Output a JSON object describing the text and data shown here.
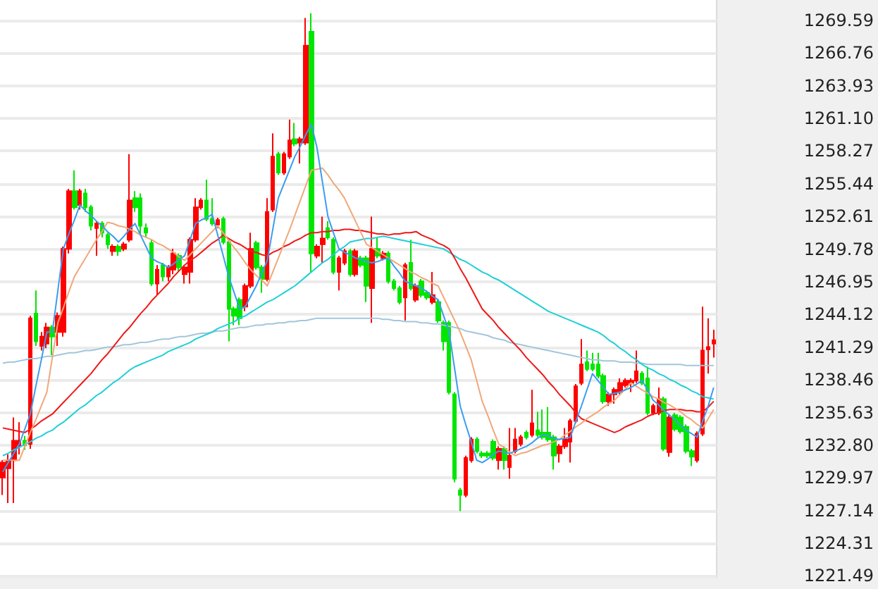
{
  "chart_data": {
    "type": "candlestick",
    "tick_labels": "y",
    "grid": "y",
    "ylim": [
      1221.33,
      1271.35
    ],
    "yticks": [
      1221.49,
      1224.31,
      1227.14,
      1229.97,
      {
        "value": 1232.8,
        "label": "1232.80"
      },
      1235.63,
      1238.46,
      1241.29,
      1244.12,
      1246.95,
      1249.78,
      1252.61,
      1255.44,
      1258.27,
      {
        "value": 1261.1,
        "label": "1261.10"
      },
      1263.93,
      1266.76,
      1269.59
    ],
    "categories": [
      null,
      null,
      null,
      null,
      null,
      null,
      null,
      null,
      null,
      null,
      null,
      null,
      null,
      null,
      null,
      null,
      null,
      null,
      null,
      null,
      null,
      null,
      null,
      null,
      null,
      null,
      null,
      null,
      null,
      null,
      null,
      null,
      null,
      null,
      null,
      null,
      null,
      null,
      null,
      null,
      null,
      null,
      null,
      null,
      null,
      null,
      null,
      null,
      null,
      null,
      null,
      null,
      null,
      null,
      null,
      null,
      null,
      null,
      null,
      null,
      null,
      null,
      null,
      null,
      null,
      null,
      null,
      null,
      null,
      null,
      null,
      null,
      null,
      null,
      null,
      null,
      null,
      null,
      null,
      null,
      null,
      null,
      null,
      null,
      null,
      null,
      null,
      null,
      null,
      null,
      null,
      null,
      null,
      null,
      null,
      null,
      null,
      null,
      null,
      null,
      null,
      null,
      null,
      null,
      null,
      null,
      null,
      null,
      null,
      null,
      null,
      null,
      null,
      null,
      null,
      null,
      null,
      null,
      null,
      null,
      null,
      null,
      null,
      null,
      null,
      null,
      null,
      null,
      null,
      null
    ],
    "ohlc": [
      [
        1230.0,
        1231.5,
        1228.5,
        1231.3
      ],
      [
        1230.8,
        1232.0,
        1227.8,
        1231.4
      ],
      [
        1231.5,
        1235.2,
        1227.8,
        1233.2
      ],
      [
        1232.8,
        1234.8,
        1232.0,
        1233.2
      ],
      [
        1233.2,
        1233.6,
        1232.4,
        1232.8
      ],
      [
        1232.9,
        1244.0,
        1232.5,
        1243.8
      ],
      [
        1244.2,
        1246.2,
        1241.4,
        1241.8
      ],
      [
        1241.4,
        1242.6,
        1241.0,
        1242.2
      ],
      [
        1241.6,
        1243.4,
        1241.2,
        1243.0
      ],
      [
        1243.0,
        1243.2,
        1240.6,
        1242.2
      ],
      [
        1242.6,
        1244.3,
        1241.4,
        1244.0
      ],
      [
        1242.6,
        1250.0,
        1242.2,
        1249.8
      ],
      [
        1249.8,
        1255.0,
        1249.4,
        1254.8
      ],
      [
        1254.8,
        1256.6,
        1253.2,
        1253.4
      ],
      [
        1253.6,
        1255.0,
        1253.2,
        1254.8
      ],
      [
        1254.6,
        1255.0,
        1253.0,
        1253.4
      ],
      [
        1253.4,
        1253.6,
        1251.4,
        1251.8
      ],
      [
        1251.6,
        1252.2,
        1249.2,
        1252.0
      ],
      [
        1252.0,
        1252.2,
        1250.8,
        1251.2
      ],
      [
        1251.0,
        1251.2,
        1249.8,
        1250.2
      ],
      [
        1249.6,
        1250.2,
        1249.2,
        1250.0
      ],
      [
        1250.0,
        1250.2,
        1249.2,
        1249.6
      ],
      [
        1249.8,
        1250.4,
        1249.6,
        1250.2
      ],
      [
        1250.6,
        1258.0,
        1250.4,
        1254.0
      ],
      [
        1254.2,
        1254.8,
        1253.0,
        1253.4
      ],
      [
        1254.2,
        1254.6,
        1251.0,
        1251.8
      ],
      [
        1251.6,
        1252.0,
        1250.8,
        1251.2
      ],
      [
        1250.3,
        1250.6,
        1246.6,
        1246.8
      ],
      [
        1246.8,
        1248.4,
        1245.8,
        1248.0
      ],
      [
        1248.4,
        1248.6,
        1247.0,
        1247.4
      ],
      [
        1247.4,
        1248.4,
        1247.0,
        1248.2
      ],
      [
        1248.0,
        1249.8,
        1247.6,
        1249.4
      ],
      [
        1249.2,
        1249.4,
        1247.8,
        1248.2
      ],
      [
        1247.6,
        1248.4,
        1246.8,
        1248.2
      ],
      [
        1247.8,
        1250.8,
        1246.8,
        1250.6
      ],
      [
        1250.6,
        1254.2,
        1250.4,
        1253.4
      ],
      [
        1253.4,
        1254.2,
        1253.2,
        1254.0
      ],
      [
        1254.0,
        1255.8,
        1252.2,
        1252.4
      ],
      [
        1252.4,
        1254.2,
        1251.8,
        1252.0
      ],
      [
        1251.9,
        1252.5,
        1251.6,
        1252.3
      ],
      [
        1252.4,
        1252.6,
        1250.2,
        1250.4
      ],
      [
        1250.4,
        1250.6,
        1241.8,
        1244.6
      ],
      [
        1244.6,
        1244.8,
        1243.2,
        1244.0
      ],
      [
        1245.4,
        1245.6,
        1243.2,
        1243.8
      ],
      [
        1244.8,
        1246.8,
        1244.4,
        1246.6
      ],
      [
        1246.6,
        1251.2,
        1246.4,
        1249.8
      ],
      [
        1250.3,
        1250.5,
        1248.0,
        1248.2
      ],
      [
        1248.2,
        1248.4,
        1246.0,
        1247.2
      ],
      [
        1247.2,
        1254.2,
        1247.0,
        1253.0
      ],
      [
        1253.2,
        1259.8,
        1253.0,
        1257.8
      ],
      [
        1258.0,
        1258.2,
        1256.2,
        1256.4
      ],
      [
        1256.4,
        1258.2,
        1256.2,
        1258.0
      ],
      [
        1257.8,
        1261.0,
        1257.6,
        1259.2
      ],
      [
        1259.3,
        1260.7,
        1258.7,
        1258.9
      ],
      [
        1259.0,
        1259.5,
        1257.2,
        1259.3
      ],
      [
        1259.0,
        1269.8,
        1258.8,
        1267.4
      ],
      [
        1268.6,
        1270.2,
        1247.8,
        1249.4
      ],
      [
        1249.2,
        1250.2,
        1249.0,
        1250.0
      ],
      [
        1250.2,
        1252.6,
        1248.6,
        1250.7
      ],
      [
        1251.6,
        1252.2,
        1250.6,
        1250.8
      ],
      [
        1250.6,
        1250.8,
        1247.6,
        1247.8
      ],
      [
        1247.8,
        1249.2,
        1246.2,
        1249.0
      ],
      [
        1248.6,
        1249.8,
        1248.4,
        1249.6
      ],
      [
        1249.6,
        1249.8,
        1247.4,
        1247.6
      ],
      [
        1247.6,
        1249.8,
        1247.4,
        1249.6
      ],
      [
        1249.0,
        1249.2,
        1248.2,
        1248.4
      ],
      [
        1249.0,
        1249.2,
        1245.2,
        1246.6
      ],
      [
        1246.4,
        1252.6,
        1243.4,
        1249.8
      ],
      [
        1249.8,
        1250.8,
        1249.0,
        1249.2
      ],
      [
        1249.0,
        1249.6,
        1248.8,
        1249.4
      ],
      [
        1249.4,
        1249.6,
        1246.8,
        1247.0
      ],
      [
        1247.0,
        1247.2,
        1246.2,
        1246.4
      ],
      [
        1246.4,
        1246.6,
        1245.0,
        1245.2
      ],
      [
        1245.6,
        1248.6,
        1243.6,
        1248.4
      ],
      [
        1248.6,
        1250.6,
        1246.2,
        1246.4
      ],
      [
        1245.4,
        1246.8,
        1245.2,
        1246.6
      ],
      [
        1247.0,
        1247.2,
        1245.6,
        1245.8
      ],
      [
        1246.0,
        1246.2,
        1245.4,
        1245.6
      ],
      [
        1245.2,
        1247.8,
        1245.0,
        1245.8
      ],
      [
        1245.2,
        1245.4,
        1243.4,
        1243.6
      ],
      [
        1243.4,
        1243.6,
        1241.0,
        1241.8
      ],
      [
        1243.4,
        1243.6,
        1237.2,
        1237.4
      ],
      [
        1237.2,
        1237.4,
        1229.6,
        1229.9
      ],
      [
        1228.9,
        1229.1,
        1227.1,
        1228.5
      ],
      [
        1228.5,
        1231.9,
        1228.3,
        1231.7
      ],
      [
        1231.5,
        1233.5,
        1231.3,
        1233.3
      ],
      [
        1233.3,
        1233.5,
        1232.1,
        1232.3
      ],
      [
        1232.1,
        1232.3,
        1231.7,
        1231.9
      ],
      [
        1232.1,
        1232.3,
        1231.7,
        1231.9
      ],
      [
        1233.1,
        1233.3,
        1231.5,
        1231.7
      ],
      [
        1231.5,
        1232.7,
        1230.7,
        1232.5
      ],
      [
        1232.5,
        1232.7,
        1230.7,
        1231.5
      ],
      [
        1230.9,
        1234.3,
        1229.9,
        1231.9
      ],
      [
        1232.3,
        1234.3,
        1232.1,
        1233.3
      ],
      [
        1232.9,
        1233.7,
        1232.7,
        1233.5
      ],
      [
        1233.9,
        1234.1,
        1233.3,
        1233.5
      ],
      [
        1233.7,
        1237.6,
        1233.5,
        1234.7
      ],
      [
        1234.1,
        1235.7,
        1233.5,
        1233.7
      ],
      [
        1233.9,
        1235.9,
        1233.3,
        1233.5
      ],
      [
        1233.9,
        1236.1,
        1233.1,
        1233.3
      ],
      [
        1233.5,
        1233.7,
        1230.7,
        1231.9
      ],
      [
        1232.1,
        1232.9,
        1231.3,
        1232.7
      ],
      [
        1232.7,
        1234.3,
        1232.5,
        1233.3
      ],
      [
        1233.1,
        1235.1,
        1231.3,
        1234.9
      ],
      [
        1234.9,
        1238.1,
        1234.7,
        1237.9
      ],
      [
        1238.2,
        1242.0,
        1238.0,
        1239.8
      ],
      [
        1240.0,
        1241.0,
        1239.2,
        1239.4
      ],
      [
        1239.8,
        1240.8,
        1239.2,
        1239.4
      ],
      [
        1239.8,
        1240.8,
        1238.6,
        1238.8
      ],
      [
        1238.8,
        1239.0,
        1236.4,
        1236.6
      ],
      [
        1236.6,
        1237.4,
        1236.2,
        1237.2
      ],
      [
        1237.2,
        1237.8,
        1236.4,
        1237.6
      ],
      [
        1237.4,
        1238.6,
        1237.2,
        1238.2
      ],
      [
        1238.0,
        1238.6,
        1237.8,
        1238.4
      ],
      [
        1238.2,
        1238.6,
        1237.4,
        1238.4
      ],
      [
        1238.4,
        1241.0,
        1238.2,
        1239.2
      ],
      [
        1239.0,
        1239.2,
        1238.0,
        1238.2
      ],
      [
        1238.6,
        1239.6,
        1235.4,
        1235.6
      ],
      [
        1235.6,
        1236.4,
        1235.4,
        1236.2
      ],
      [
        1235.6,
        1237.8,
        1235.4,
        1236.8
      ],
      [
        1236.8,
        1237.0,
        1232.3,
        1232.5
      ],
      [
        1232.2,
        1235.4,
        1231.8,
        1235.2
      ],
      [
        1235.4,
        1235.6,
        1234.0,
        1234.2
      ],
      [
        1235.2,
        1235.4,
        1233.8,
        1234.0
      ],
      [
        1234.4,
        1234.6,
        1232.1,
        1232.3
      ],
      [
        1232.3,
        1232.5,
        1231.0,
        1231.8
      ],
      [
        1231.5,
        1234.0,
        1231.3,
        1233.8
      ],
      [
        1233.8,
        1244.8,
        1233.6,
        1241.0
      ],
      [
        1241.1,
        1243.8,
        1239.0,
        1241.3
      ],
      [
        1241.6,
        1242.8,
        1240.4,
        1241.9
      ]
    ],
    "colors": [
      "#ff0000",
      "#ff0000",
      "#ff0000",
      "#ff0000",
      "#00e600",
      "#ff0000",
      "#00e600",
      "#ff0000",
      "#ff0000",
      "#00e600",
      "#ff0000",
      "#ff0000",
      "#ff0000",
      "#00e600",
      "#ff0000",
      "#00e600",
      "#00e600",
      "#ff0000",
      "#00e600",
      "#00e600",
      "#ff0000",
      "#00e600",
      "#ff0000",
      "#ff0000",
      "#00e600",
      "#00e600",
      "#00e600",
      "#00e600",
      "#ff0000",
      "#00e600",
      "#ff0000",
      "#ff0000",
      "#00e600",
      "#ff0000",
      "#ff0000",
      "#ff0000",
      "#ff0000",
      "#00e600",
      "#00e600",
      "#ff0000",
      "#00e600",
      "#00e600",
      "#00e600",
      "#00e600",
      "#ff0000",
      "#ff0000",
      "#00e600",
      "#00e600",
      "#ff0000",
      "#ff0000",
      "#00e600",
      "#ff0000",
      "#ff0000",
      "#00e600",
      "#ff0000",
      "#ff0000",
      "#00e600",
      "#ff0000",
      "#ff0000",
      "#00e600",
      "#00e600",
      "#ff0000",
      "#ff0000",
      "#00e600",
      "#ff0000",
      "#00e600",
      "#00e600",
      "#ff0000",
      "#00e600",
      "#ff0000",
      "#00e600",
      "#00e600",
      "#00e600",
      "#ff0000",
      "#00e600",
      "#ff0000",
      "#00e600",
      "#00e600",
      "#ff0000",
      "#00e600",
      "#00e600",
      "#00e600",
      "#00e600",
      "#00e600",
      "#ff0000",
      "#ff0000",
      "#00e600",
      "#00e600",
      "#00e600",
      "#00e600",
      "#ff0000",
      "#00e600",
      "#ff0000",
      "#ff0000",
      "#ff0000",
      "#00e600",
      "#ff0000",
      "#00e600",
      "#00e600",
      "#00e600",
      "#00e600",
      "#ff0000",
      "#ff0000",
      "#ff0000",
      "#ff0000",
      "#ff0000",
      "#00e600",
      "#00e600",
      "#00e600",
      "#00e600",
      "#ff0000",
      "#ff0000",
      "#ff0000",
      "#ff0000",
      "#ff0000",
      "#ff0000",
      "#00e600",
      "#00e600",
      "#ff0000",
      "#ff0000",
      "#00e600",
      "#ff0000",
      "#00e600",
      "#00e600",
      "#00e600",
      "#00e600",
      "#ff0000",
      "#ff0000",
      "#ff0000",
      "#ff0000"
    ],
    "series": [
      {
        "type": "line",
        "color": "#a3c6dc",
        "values": [
          1239.9,
          1240.0,
          1240.0,
          1240.1,
          1240.2,
          1240.3,
          1240.3,
          1240.4,
          1240.5,
          1240.5,
          1240.6,
          1240.7,
          1240.8,
          1240.8,
          1240.9,
          1241.0,
          1241.0,
          1241.1,
          1241.2,
          1241.3,
          1241.3,
          1241.4,
          1241.5,
          1241.5,
          1241.6,
          1241.7,
          1241.7,
          1241.8,
          1241.9,
          1242.0,
          1242.0,
          1242.1,
          1242.2,
          1242.2,
          1242.3,
          1242.4,
          1242.5,
          1242.5,
          1242.6,
          1242.7,
          1242.7,
          1242.8,
          1242.9,
          1243.0,
          1243.0,
          1243.1,
          1243.2,
          1243.2,
          1243.3,
          1243.3,
          1243.4,
          1243.4,
          1243.5,
          1243.5,
          1243.6,
          1243.6,
          1243.7,
          1243.8,
          1243.8,
          1243.8,
          1243.8,
          1243.8,
          1243.8,
          1243.8,
          1243.8,
          1243.8,
          1243.8,
          1243.8,
          1243.8,
          1243.7,
          1243.7,
          1243.6,
          1243.6,
          1243.5,
          1243.5,
          1243.5,
          1243.4,
          1243.4,
          1243.3,
          1243.3,
          1243.2,
          1243.1,
          1243.0,
          1242.9,
          1242.7,
          1242.6,
          1242.5,
          1242.4,
          1242.3,
          1242.1,
          1242.0,
          1241.9,
          1241.7,
          1241.6,
          1241.5,
          1241.4,
          1241.3,
          1241.2,
          1241.1,
          1241.0,
          1240.9,
          1240.8,
          1240.7,
          1240.6,
          1240.5,
          1240.4,
          1240.3,
          1240.2,
          1240.2,
          1240.1,
          1240.1,
          1240.1,
          1240.0,
          1240.0,
          1240.0,
          1239.9,
          1239.9,
          1239.8,
          1239.8,
          1239.8,
          1239.8,
          1239.8,
          1239.8,
          1239.8,
          1239.7,
          1239.7,
          1239.7,
          1239.7,
          1239.7,
          1239.7
        ]
      },
      {
        "type": "line",
        "color": "#1fcfd8",
        "values": [
          1231.9,
          1232.1,
          1232.4,
          1232.6,
          1232.9,
          1233.1,
          1233.4,
          1233.6,
          1233.9,
          1234.1,
          1234.5,
          1234.8,
          1235.2,
          1235.6,
          1236.0,
          1236.3,
          1236.7,
          1237.1,
          1237.4,
          1237.8,
          1238.2,
          1238.5,
          1238.9,
          1239.3,
          1239.6,
          1239.8,
          1240.0,
          1240.2,
          1240.4,
          1240.6,
          1240.9,
          1241.1,
          1241.3,
          1241.5,
          1241.7,
          1242.0,
          1242.2,
          1242.4,
          1242.6,
          1242.9,
          1243.1,
          1243.3,
          1243.5,
          1243.8,
          1244.0,
          1244.3,
          1244.6,
          1244.9,
          1245.2,
          1245.4,
          1245.7,
          1246.0,
          1246.3,
          1246.6,
          1247.0,
          1247.4,
          1247.8,
          1248.2,
          1248.6,
          1248.9,
          1249.3,
          1249.7,
          1250.0,
          1250.4,
          1250.5,
          1250.6,
          1250.7,
          1250.7,
          1250.8,
          1250.9,
          1250.8,
          1250.7,
          1250.6,
          1250.5,
          1250.4,
          1250.3,
          1250.2,
          1250.1,
          1250.0,
          1249.9,
          1249.8,
          1249.5,
          1249.2,
          1248.9,
          1248.7,
          1248.4,
          1248.1,
          1247.8,
          1247.6,
          1247.3,
          1247.1,
          1246.8,
          1246.5,
          1246.2,
          1245.9,
          1245.6,
          1245.3,
          1245.0,
          1244.7,
          1244.4,
          1244.2,
          1244.0,
          1243.8,
          1243.6,
          1243.4,
          1243.2,
          1243.0,
          1242.8,
          1242.6,
          1242.3,
          1241.9,
          1241.6,
          1241.2,
          1240.9,
          1240.5,
          1240.2,
          1239.8,
          1239.5,
          1239.3,
          1239.0,
          1238.8,
          1238.5,
          1238.3,
          1238.0,
          1237.8,
          1237.5,
          1237.3,
          1237.0,
          1236.9,
          1236.8
        ]
      },
      {
        "type": "line",
        "color": "#f01818",
        "values": [
          1234.3,
          1234.2,
          1234.1,
          1234.0,
          1233.9,
          1234.2,
          1234.5,
          1234.9,
          1235.2,
          1235.5,
          1236.0,
          1236.5,
          1237.0,
          1237.5,
          1238.0,
          1238.5,
          1239.0,
          1239.6,
          1240.2,
          1240.7,
          1241.3,
          1241.9,
          1242.5,
          1243.0,
          1243.6,
          1244.2,
          1244.7,
          1245.3,
          1245.8,
          1246.3,
          1246.8,
          1247.4,
          1247.9,
          1248.4,
          1248.8,
          1249.1,
          1249.5,
          1249.9,
          1250.3,
          1250.6,
          1251.0,
          1250.7,
          1250.4,
          1250.2,
          1249.9,
          1249.6,
          1249.5,
          1249.3,
          1249.2,
          1249.5,
          1249.7,
          1250.0,
          1250.2,
          1250.5,
          1250.7,
          1251.0,
          1251.2,
          1251.2,
          1251.3,
          1251.3,
          1251.4,
          1251.4,
          1251.5,
          1251.5,
          1251.4,
          1251.4,
          1251.3,
          1251.2,
          1251.1,
          1251.1,
          1251.0,
          1251.1,
          1251.1,
          1251.2,
          1251.2,
          1251.3,
          1251.0,
          1250.8,
          1250.6,
          1250.3,
          1250.1,
          1249.8,
          1249.0,
          1248.1,
          1247.3,
          1246.4,
          1245.5,
          1244.6,
          1244.1,
          1243.6,
          1243.0,
          1242.5,
          1242.0,
          1241.5,
          1241.0,
          1240.4,
          1239.9,
          1239.4,
          1238.9,
          1238.3,
          1237.8,
          1237.2,
          1236.7,
          1236.2,
          1235.6,
          1235.1,
          1234.9,
          1234.7,
          1234.5,
          1234.3,
          1234.1,
          1233.9,
          1234.1,
          1234.4,
          1234.6,
          1234.8,
          1235.0,
          1235.3,
          1235.5,
          1235.6,
          1235.8,
          1235.9,
          1235.9,
          1235.9,
          1235.8,
          1235.8,
          1235.7,
          1235.7,
          1236.1,
          1236.6
        ]
      },
      {
        "type": "line",
        "color": "#f0a87a",
        "values": [
          1231.5,
          1231.5,
          1231.5,
          1231.5,
          1232.7,
          1233.9,
          1235.0,
          1236.2,
          1237.4,
          1240.4,
          1243.4,
          1244.7,
          1246.1,
          1247.4,
          1248.2,
          1249.0,
          1249.8,
          1250.6,
          1251.3,
          1252.1,
          1252.0,
          1251.8,
          1251.7,
          1251.5,
          1251.3,
          1251.0,
          1250.8,
          1250.6,
          1250.3,
          1250.1,
          1249.8,
          1249.5,
          1249.1,
          1248.8,
          1249.3,
          1249.8,
          1250.3,
          1250.8,
          1251.3,
          1251.8,
          1251.2,
          1250.5,
          1249.9,
          1249.3,
          1248.6,
          1248.0,
          1247.5,
          1247.1,
          1246.6,
          1247.8,
          1249.0,
          1250.2,
          1251.4,
          1252.7,
          1254.0,
          1255.3,
          1256.6,
          1256.7,
          1256.8,
          1256.2,
          1255.5,
          1254.9,
          1254.2,
          1253.2,
          1252.2,
          1251.2,
          1250.2,
          1249.9,
          1249.6,
          1249.3,
          1249.0,
          1248.7,
          1248.4,
          1248.1,
          1247.8,
          1247.6,
          1247.3,
          1247.1,
          1246.8,
          1246.6,
          1245.6,
          1244.6,
          1243.6,
          1242.6,
          1241.4,
          1240.2,
          1238.4,
          1236.6,
          1235.4,
          1234.1,
          1232.9,
          1232.6,
          1232.2,
          1231.9,
          1232.1,
          1232.2,
          1232.4,
          1232.6,
          1232.8,
          1232.9,
          1233.1,
          1233.3,
          1233.7,
          1234.0,
          1234.4,
          1234.7,
          1235.1,
          1235.4,
          1235.7,
          1236.1,
          1236.4,
          1236.7,
          1237.2,
          1237.7,
          1238.2,
          1237.9,
          1237.6,
          1237.3,
          1237.0,
          1236.8,
          1236.5,
          1236.3,
          1236.0,
          1235.7,
          1235.3,
          1235.0,
          1234.6,
          1234.3,
          1235.1,
          1235.9
        ]
      },
      {
        "type": "line",
        "color": "#3b9cf0",
        "values": [
          1230.5,
          1231.3,
          1232.1,
          1232.9,
          1234.2,
          1235.5,
          1237.9,
          1240.2,
          1242.6,
          1242.6,
          1246.2,
          1249.8,
          1251.1,
          1252.3,
          1253.6,
          1253.1,
          1252.7,
          1252.2,
          1251.8,
          1251.3,
          1250.9,
          1250.4,
          1250.9,
          1251.5,
          1252.0,
          1251.0,
          1250.0,
          1249.0,
          1248.7,
          1248.5,
          1248.2,
          1248.5,
          1248.9,
          1249.2,
          1250.6,
          1252.0,
          1252.3,
          1252.5,
          1252.8,
          1251.0,
          1249.2,
          1247.4,
          1246.0,
          1244.6,
          1244.8,
          1245.7,
          1246.6,
          1247.7,
          1248.8,
          1251.5,
          1254.2,
          1255.4,
          1256.6,
          1257.8,
          1258.7,
          1259.7,
          1260.6,
          1258.6,
          1255.6,
          1252.6,
          1251.2,
          1249.8,
          1249.5,
          1249.3,
          1249.0,
          1248.9,
          1248.7,
          1248.6,
          1248.7,
          1248.9,
          1249.0,
          1248.3,
          1247.7,
          1247.0,
          1246.8,
          1246.6,
          1246.4,
          1246.1,
          1245.7,
          1245.4,
          1244.0,
          1242.6,
          1239.4,
          1236.2,
          1234.6,
          1233.1,
          1231.5,
          1231.3,
          1231.6,
          1232.0,
          1232.3,
          1232.2,
          1232.1,
          1232.3,
          1232.5,
          1232.7,
          1233.0,
          1233.4,
          1233.7,
          1233.6,
          1233.4,
          1233.3,
          1233.4,
          1233.5,
          1234.9,
          1236.2,
          1237.6,
          1239.0,
          1238.4,
          1237.8,
          1237.2,
          1237.3,
          1237.4,
          1237.6,
          1237.8,
          1238.1,
          1238.4,
          1237.6,
          1236.7,
          1236.3,
          1235.8,
          1235.4,
          1235.0,
          1234.5,
          1234.1,
          1233.8,
          1233.5,
          1234.9,
          1236.2,
          1237.8
        ]
      }
    ]
  }
}
